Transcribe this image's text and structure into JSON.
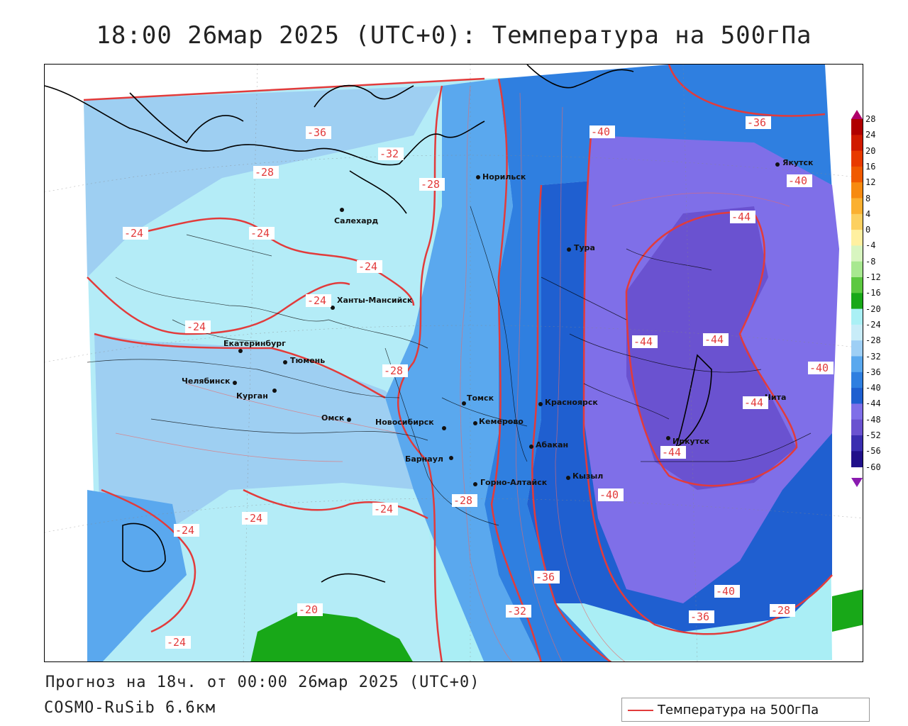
{
  "title": "18:00 26мар 2025 (UTC+0): Температура на 500гПа",
  "footer": {
    "forecast_line": "Прогноз на 18ч. от 00:00 26мар 2025 (UTC+0)",
    "model_line": "COSMO-RuSib 6.6км"
  },
  "legend": {
    "label": "Температура на 500гПа",
    "line_color": "#e23b3b"
  },
  "colorbar": {
    "labels": [
      "28",
      "24",
      "20",
      "16",
      "12",
      "8",
      "4",
      "0",
      "-4",
      "-8",
      "-12",
      "-16",
      "-20",
      "-24",
      "-28",
      "-32",
      "-36",
      "-40",
      "-44",
      "-48",
      "-52",
      "-56",
      "-60"
    ],
    "colors": [
      "#b0006a",
      "#b00000",
      "#d01a00",
      "#e83a00",
      "#f05a00",
      "#f78a10",
      "#fbb030",
      "#fcd060",
      "#fff0a0",
      "#d8f5c0",
      "#a8e890",
      "#5cc840",
      "#18a818",
      "#aaf0f5",
      "#c8ecf8",
      "#9ecff5",
      "#5aa8ee",
      "#2f7fe0",
      "#1f5fd0",
      "#7f6fe8",
      "#6a52d0",
      "#3a2eb0",
      "#20108a",
      "#8a1ab0"
    ]
  },
  "cities": [
    {
      "name": "Якутск"
    },
    {
      "name": "Норильск"
    },
    {
      "name": "Салехард"
    },
    {
      "name": "Тура"
    },
    {
      "name": "Ханты-Мансийск"
    },
    {
      "name": "Екатеринбург"
    },
    {
      "name": "Тюмень"
    },
    {
      "name": "Челябинск"
    },
    {
      "name": "Курган"
    },
    {
      "name": "Омск"
    },
    {
      "name": "Новосибирск"
    },
    {
      "name": "Томск"
    },
    {
      "name": "Кемерово"
    },
    {
      "name": "Красноярск"
    },
    {
      "name": "Абакан"
    },
    {
      "name": "Барнаул"
    },
    {
      "name": "Горно-Алтайск"
    },
    {
      "name": "Кызыл"
    },
    {
      "name": "Иркутск"
    },
    {
      "name": "Чита"
    }
  ],
  "isotherm_labels": [
    "-36",
    "-32",
    "-28",
    "-28",
    "-24",
    "-24",
    "-24",
    "-24",
    "-28",
    "-24",
    "-24",
    "-24",
    "-24",
    "-28",
    "-20",
    "-24",
    "-40",
    "-36",
    "-40",
    "-44",
    "-44",
    "-44",
    "-40",
    "-44",
    "-44",
    "-40",
    "-36",
    "-32",
    "-40",
    "-36",
    "-28"
  ]
}
